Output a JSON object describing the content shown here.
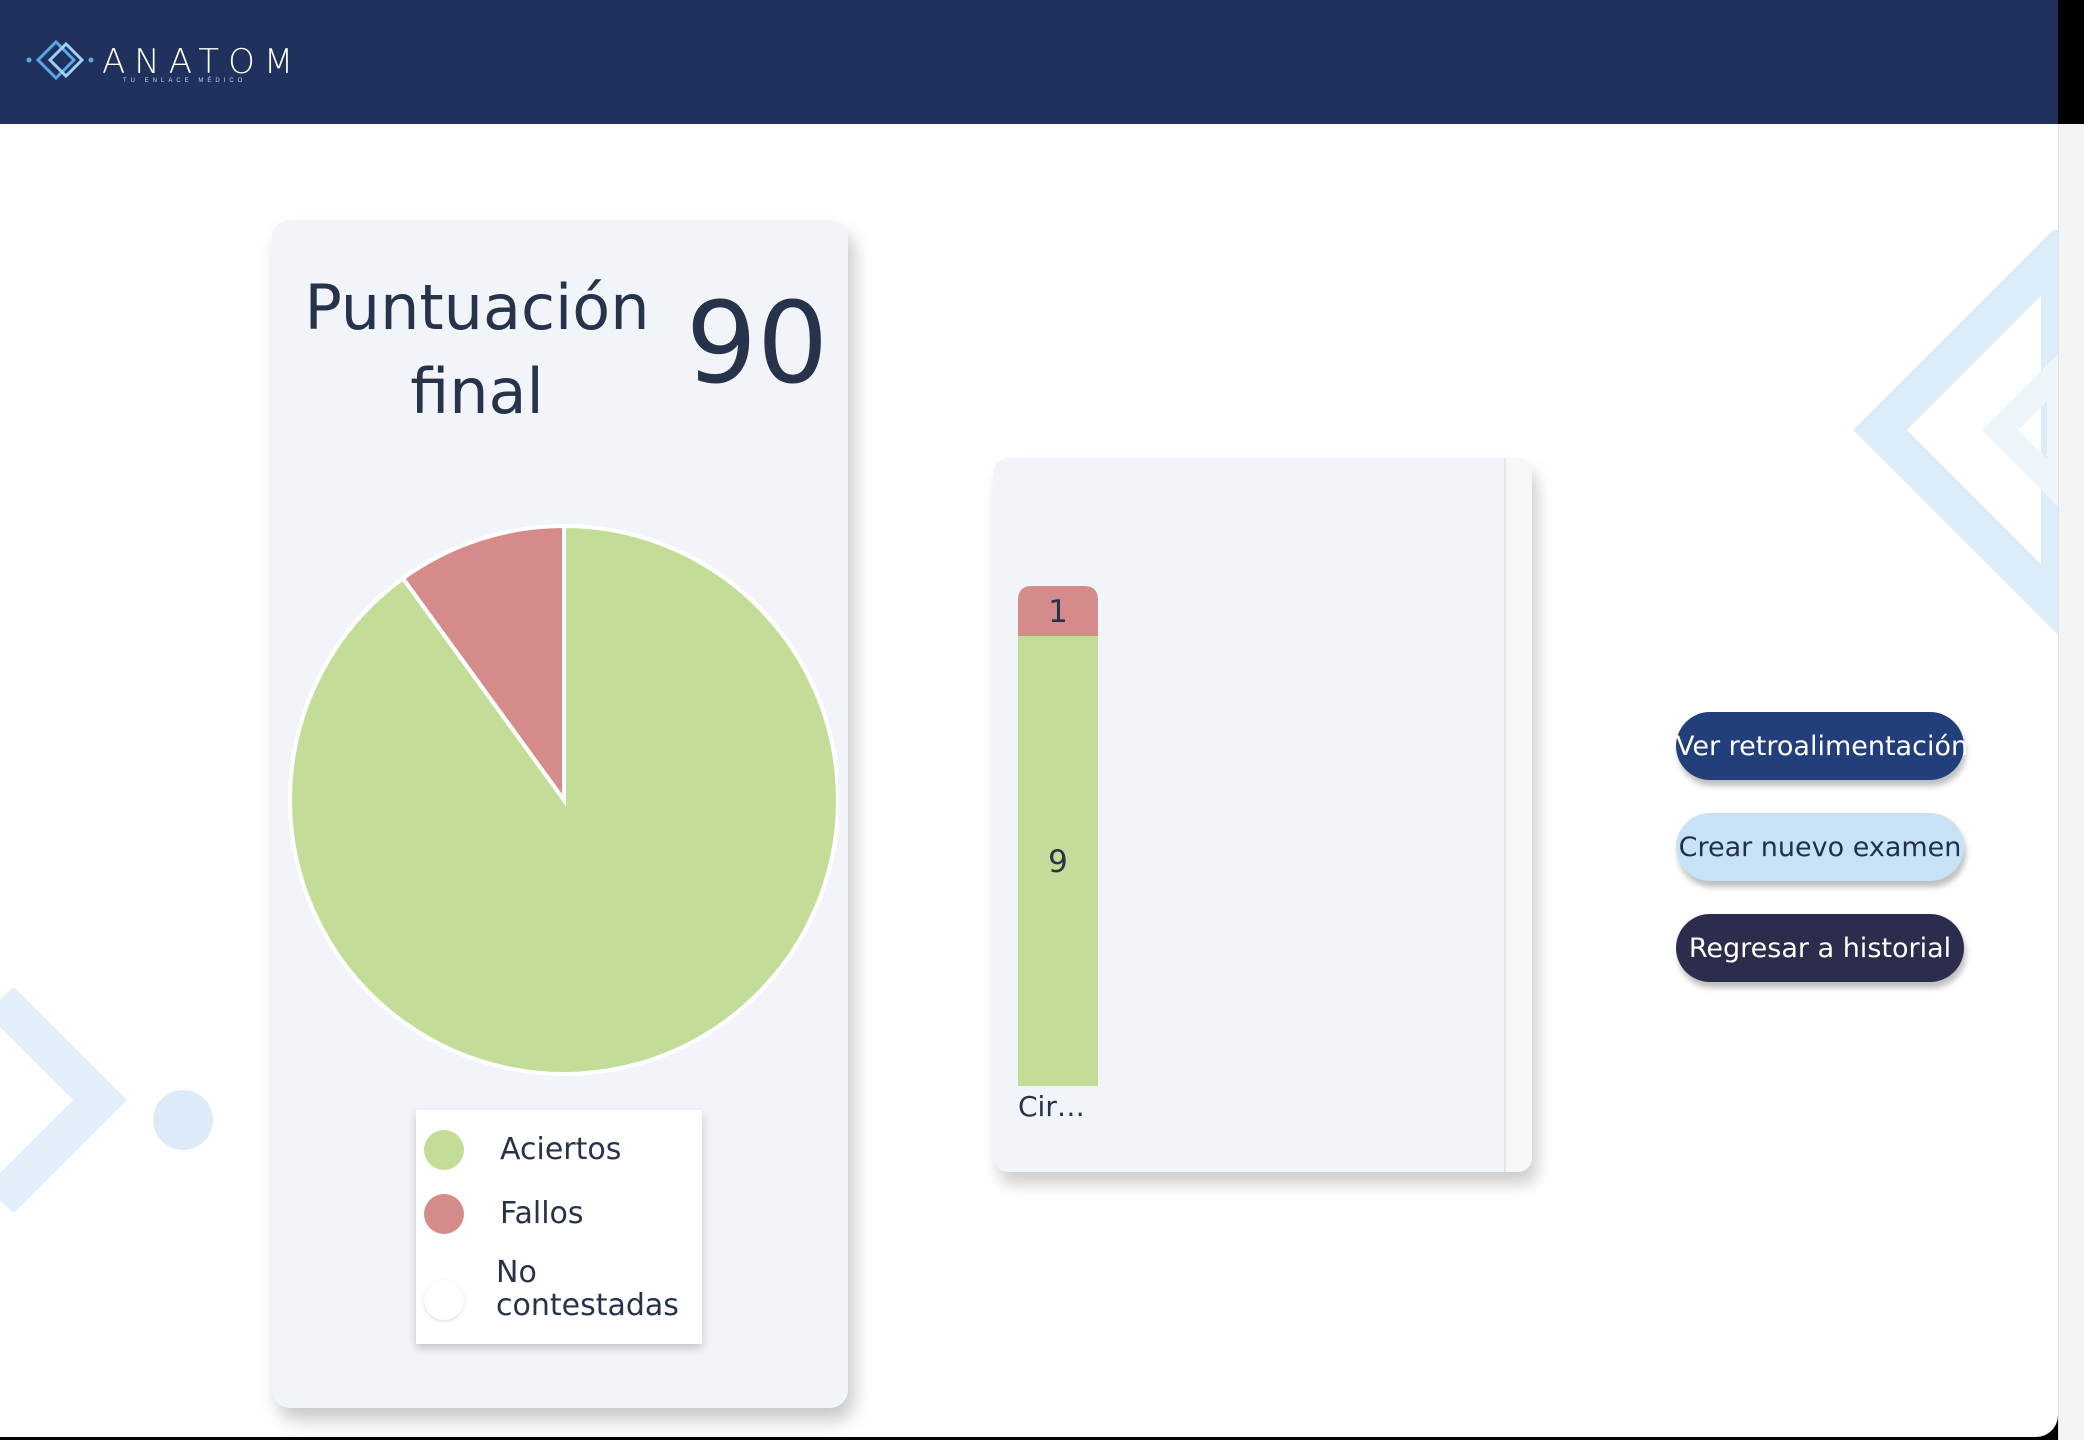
{
  "header": {
    "logo_name": "ANATOM",
    "logo_tagline": "TU ENLACE MÉDICO",
    "logo_icon": "diamond-logo-icon"
  },
  "score": {
    "label_line1": "Puntuación",
    "label_line2": "final",
    "value": "90"
  },
  "legend": {
    "items": [
      {
        "label": "Aciertos",
        "color": "#c3dd99"
      },
      {
        "label": "Fallos",
        "color": "#d48b89"
      },
      {
        "label_line1": "No",
        "label_line2": "contestadas",
        "color": "#ffffff"
      }
    ]
  },
  "colors": {
    "header_bg": "#1f315c",
    "correct": "#c3dd99",
    "wrong": "#d48b89",
    "unanswered": "#ffffff",
    "card_bg": "#f1f4f9"
  },
  "chart_data": [
    {
      "type": "pie",
      "categories": [
        "Aciertos",
        "Fallos",
        "No contestadas"
      ],
      "values": [
        9,
        1,
        0
      ],
      "legend": "bottom"
    },
    {
      "type": "bar",
      "stacked": true,
      "categories": [
        "Cir…"
      ],
      "series": [
        {
          "name": "Aciertos",
          "values": [
            9
          ]
        },
        {
          "name": "Fallos",
          "values": [
            1
          ]
        }
      ],
      "data_labels": [
        "9",
        "1"
      ]
    }
  ],
  "buttons": {
    "feedback": "Ver retroalimentación",
    "new_exam": "Crear nuevo examen",
    "history": "Regresar a historial"
  }
}
